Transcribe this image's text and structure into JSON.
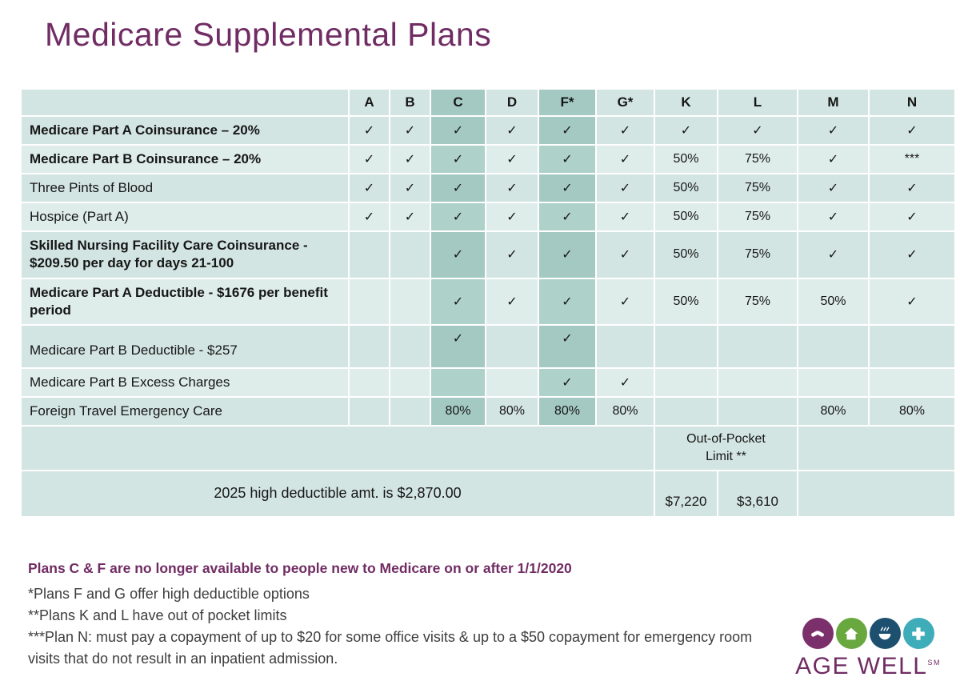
{
  "title": "Medicare Supplemental Plans",
  "colors": {
    "accent_purple": "#702c63",
    "table_cell": "#d3e5e2",
    "table_cell_alt": "#deedea",
    "highlight_column": "#a4c9c3",
    "footnote_gray": "#3d3d3d"
  },
  "table": {
    "columns": [
      "A",
      "B",
      "C",
      "D",
      "F*",
      "G*",
      "K",
      "L",
      "M",
      "N"
    ],
    "highlight_columns": [
      "C",
      "F*"
    ],
    "rows": [
      {
        "label": "Medicare Part A Coinsurance – 20%",
        "bold": true,
        "cells": [
          "✓",
          "✓",
          "✓",
          "✓",
          "✓",
          "✓",
          "✓",
          "✓",
          "✓",
          "✓"
        ]
      },
      {
        "label": "Medicare Part B Coinsurance – 20%",
        "bold": true,
        "cells": [
          "✓",
          "✓",
          "✓",
          "✓",
          "✓",
          "✓",
          "50%",
          "75%",
          "✓",
          "***"
        ]
      },
      {
        "label": "Three Pints of Blood",
        "bold": false,
        "cells": [
          "✓",
          "✓",
          "✓",
          "✓",
          "✓",
          "✓",
          "50%",
          "75%",
          "✓",
          "✓"
        ]
      },
      {
        "label": "Hospice (Part A)",
        "bold": false,
        "cells": [
          "✓",
          "✓",
          "✓",
          "✓",
          "✓",
          "✓",
          "50%",
          "75%",
          "✓",
          "✓"
        ]
      },
      {
        "label": "Skilled Nursing Facility Care Coinsurance - $209.50 per day for days 21-100",
        "bold": true,
        "cells": [
          "",
          "",
          "✓",
          "✓",
          "✓",
          "✓",
          "50%",
          "75%",
          "✓",
          "✓"
        ]
      },
      {
        "label": "Medicare Part A Deductible - $1676 per benefit period",
        "bold": true,
        "cells": [
          "",
          "",
          "✓",
          "✓",
          "✓",
          "✓",
          "50%",
          "75%",
          "50%",
          "✓"
        ]
      },
      {
        "label": "Medicare Part B Deductible - $257",
        "bold": false,
        "check_align": "top",
        "cells": [
          "",
          "",
          "✓",
          "",
          "✓",
          "",
          "",
          "",
          "",
          ""
        ]
      },
      {
        "label": "Medicare Part B Excess Charges",
        "bold": false,
        "cells": [
          "",
          "",
          "",
          "",
          "✓",
          "✓",
          "",
          "",
          "",
          ""
        ]
      },
      {
        "label": "Foreign Travel Emergency Care",
        "bold": false,
        "cells": [
          "",
          "",
          "80%",
          "80%",
          "80%",
          "80%",
          "",
          "",
          "80%",
          "80%"
        ]
      }
    ],
    "out_of_pocket_label": "Out-of-Pocket Limit **",
    "high_deductible_note": "2025 high deductible amt. is $2,870.00",
    "oop_values": {
      "k": "$7,220",
      "l": "$3,610"
    }
  },
  "footnotes": {
    "highlight": "Plans C & F are no longer available to people new to Medicare on or after 1/1/2020",
    "note1": "*Plans F and G offer high deductible options",
    "note2": "**Plans K and L have out of pocket limits",
    "note3": "***Plan N: must pay a copayment of up to $20 for some office visits & up to a $50 copayment for emergency room visits that do not result in an inpatient admission."
  },
  "logo": {
    "text": "AGE WELL",
    "sm": "SM",
    "circle_colors": [
      "#7b2f6b",
      "#69a83f",
      "#1d4f6e",
      "#3fadb9"
    ],
    "icons": [
      "hands-icon",
      "house-icon",
      "bowl-icon",
      "plus-icon"
    ]
  }
}
